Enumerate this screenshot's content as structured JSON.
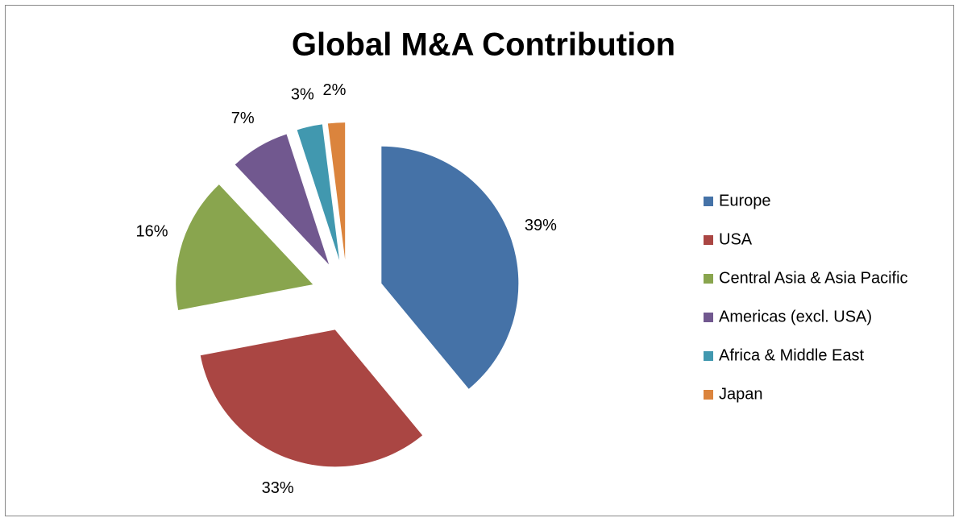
{
  "chart_data": {
    "type": "pie",
    "title": "Global M&A Contribution",
    "categories": [
      "Europe",
      "USA",
      "Central Asia & Asia Pacific",
      "Americas (excl. USA)",
      "Africa & Middle East",
      "Japan"
    ],
    "values": [
      39,
      33,
      16,
      7,
      3,
      2
    ],
    "value_labels": [
      "39%",
      "33%",
      "16%",
      "7%",
      "3%",
      "2%"
    ],
    "colors": [
      "#4572a7",
      "#aa4643",
      "#89a54e",
      "#71588f",
      "#4198af",
      "#db843d"
    ],
    "legend": "right"
  }
}
